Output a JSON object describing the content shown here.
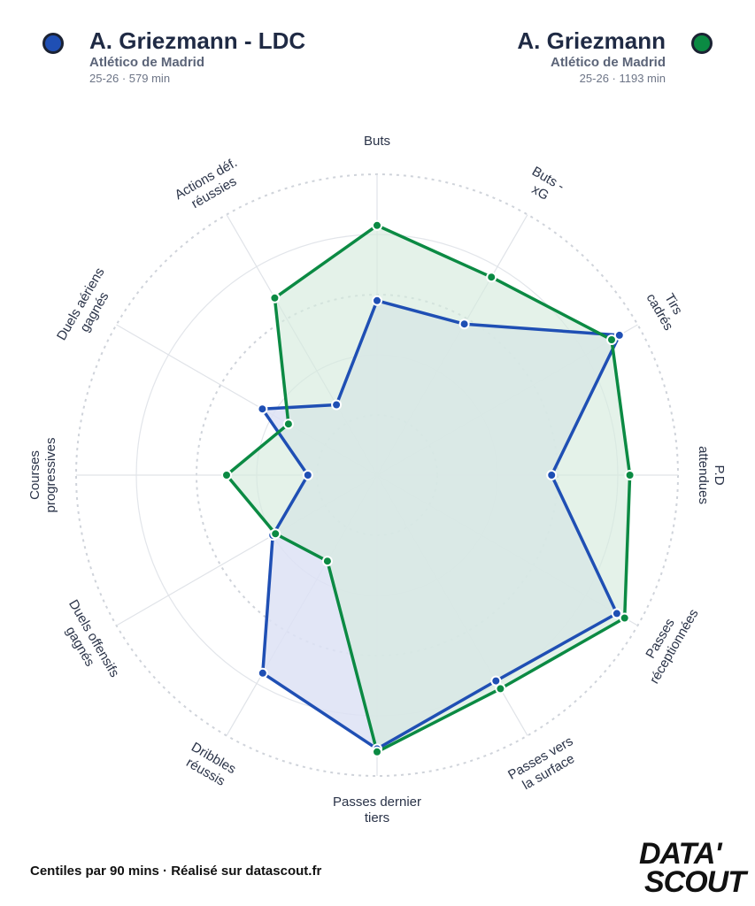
{
  "players": [
    {
      "name": "A. Griezmann - LDC",
      "team": "Atlético de Madrid",
      "meta": "25-26 · 579 min",
      "color": "#1f4fb4",
      "fill": "#dde2f4"
    },
    {
      "name": "A. Griezmann",
      "team": "Atlético de Madrid",
      "meta": "25-26 · 1193 min",
      "color": "#0b8a43",
      "fill": "#d5ebdd"
    }
  ],
  "footer": "Centiles par 90 mins · Réalisé sur datascout.fr",
  "logo": {
    "line1": "DATA'",
    "line2": "SCOUT"
  },
  "chart_data": {
    "type": "radar",
    "categories": [
      "Buts",
      "Buts - xG",
      "Tirs cadrés",
      "P.D attendues",
      "Passes réceptionnées",
      "Passes vers la surface",
      "Passes dernier tiers",
      "Dribbles réussis",
      "Duels offensifs gagnés",
      "Courses progressives",
      "Duels aériens gagnés",
      "Actions déf. réussies"
    ],
    "rlim": [
      0,
      100
    ],
    "series": [
      {
        "name": "A. Griezmann - LDC",
        "values": [
          58,
          58,
          93,
          58,
          92,
          79,
          91,
          76,
          40,
          23,
          44,
          27
        ]
      },
      {
        "name": "A. Griezmann",
        "values": [
          83,
          76,
          90,
          84,
          95,
          82,
          92,
          33,
          39,
          50,
          34,
          68
        ]
      }
    ]
  }
}
